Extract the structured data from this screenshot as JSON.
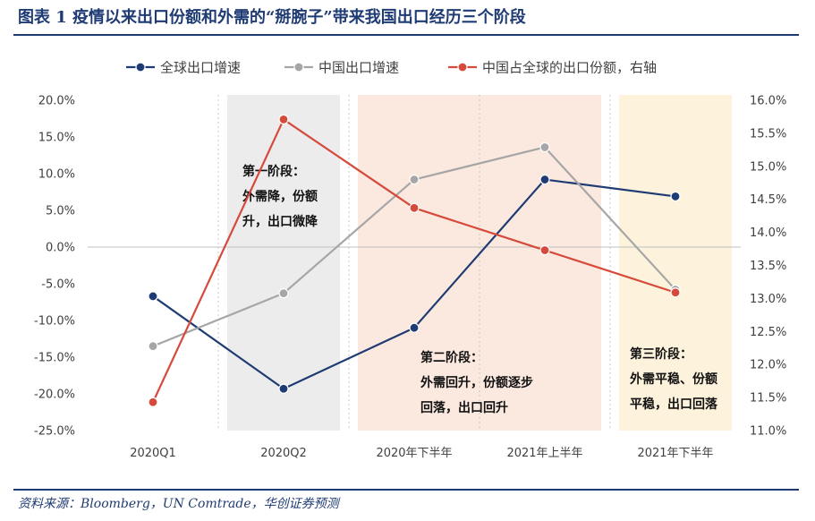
{
  "figure_title": "图表 1    疫情以来出口份额和外需的“掰腕子”带来我国出口经历三个阶段",
  "source_text": "资料来源：Bloomberg，UN Comtrade，华创证券预测",
  "colors": {
    "global": "#1f3b73",
    "china": "#a6a6a6",
    "share": "#d64a3c",
    "band1": "#ececec",
    "band2": "#fbe9e0",
    "band3": "#fdf3dc",
    "title": "#1f3b73"
  },
  "chart_data": {
    "type": "line",
    "categories": [
      "2020Q1",
      "2020Q2",
      "2020年下半年",
      "2021年上半年",
      "2021年下半年"
    ],
    "series": [
      {
        "name": "全球出口增速",
        "axis": "left",
        "values": [
          -6.7,
          -19.3,
          -11.0,
          9.2,
          6.9
        ]
      },
      {
        "name": "中国出口增速",
        "axis": "left",
        "values": [
          -13.5,
          -6.3,
          9.2,
          13.6,
          -5.8
        ]
      },
      {
        "name": "中国占全球的出口份额，右轴",
        "axis": "right",
        "values": [
          11.43,
          15.71,
          14.37,
          13.73,
          13.09
        ]
      }
    ],
    "y_left": {
      "min": -25,
      "max": 20,
      "step": 5,
      "ticks": [
        "20.0%",
        "15.0%",
        "10.0%",
        "5.0%",
        "0.0%",
        "-5.0%",
        "-10.0%",
        "-15.0%",
        "-20.0%",
        "-25.0%"
      ]
    },
    "y_right": {
      "min": 11,
      "max": 16,
      "step": 0.5,
      "ticks": [
        "16.0%",
        "15.5%",
        "15.0%",
        "14.5%",
        "14.0%",
        "13.5%",
        "13.0%",
        "12.5%",
        "12.0%",
        "11.5%",
        "11.0%"
      ]
    },
    "legend_position": "top",
    "bands": [
      {
        "name": "第一阶段",
        "from": 1,
        "to": 1,
        "color": "band1",
        "lines": [
          "第一阶段：",
          "外需降，份额",
          "升，出口微降"
        ]
      },
      {
        "name": "第二阶段",
        "from": 2,
        "to": 3,
        "color": "band2",
        "lines": [
          "第二阶段：",
          "外需回升，份额逐步",
          "回落，出口回升"
        ]
      },
      {
        "name": "第三阶段",
        "from": 4,
        "to": 4,
        "color": "band3",
        "lines": [
          "第三阶段：",
          "外需平稳、份额",
          "平稳，出口回落"
        ]
      }
    ]
  }
}
